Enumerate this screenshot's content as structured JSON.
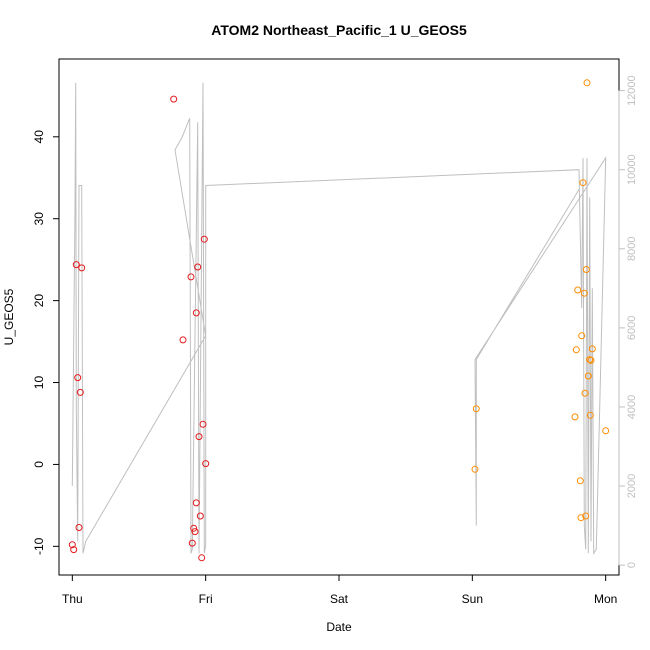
{
  "chart_data": {
    "type": "scatter",
    "title": "ATOM2 Northeast_Pacific_1 U_GEOS5",
    "xlabel": "Date",
    "ylabel": "U_GEOS5",
    "x_ticks": [
      "Thu",
      "Fri",
      "Sat",
      "Sun",
      "Mon"
    ],
    "xlim": [
      -0.1,
      4.1
    ],
    "ylim": [
      -13.5,
      49.5
    ],
    "y_ticks": [
      -10,
      0,
      10,
      20,
      30,
      40
    ],
    "y2lim": [
      -250,
      12800
    ],
    "y2_ticks": [
      0,
      2000,
      4000,
      6000,
      8000,
      10000,
      12000
    ],
    "grid": false,
    "colors": {
      "red": "#e41a1c",
      "orange": "#ff8c00",
      "line": "#bfbfbf",
      "right_axis": "#bfbfbf"
    },
    "series": [
      {
        "color_key": "red",
        "points": [
          [
            0.0,
            -9.8
          ],
          [
            0.01,
            -10.4
          ],
          [
            0.03,
            24.4
          ],
          [
            0.04,
            10.6
          ],
          [
            0.05,
            -7.7
          ],
          [
            0.06,
            8.8
          ],
          [
            0.07,
            24.0
          ],
          [
            0.76,
            44.6
          ],
          [
            0.83,
            15.2
          ],
          [
            0.89,
            22.9
          ],
          [
            0.9,
            -9.6
          ],
          [
            0.91,
            -7.8
          ],
          [
            0.92,
            -8.2
          ],
          [
            0.93,
            -4.7
          ],
          [
            0.93,
            18.5
          ],
          [
            0.94,
            24.1
          ],
          [
            0.95,
            3.4
          ],
          [
            0.96,
            -6.3
          ],
          [
            0.97,
            -11.4
          ],
          [
            0.98,
            4.9
          ],
          [
            0.99,
            27.5
          ],
          [
            1.0,
            0.1
          ]
        ]
      },
      {
        "color_key": "orange",
        "points": [
          [
            3.02,
            -0.6
          ],
          [
            3.03,
            6.8
          ],
          [
            3.77,
            5.8
          ],
          [
            3.78,
            14.0
          ],
          [
            3.79,
            21.3
          ],
          [
            3.81,
            -2.0
          ],
          [
            3.815,
            -6.5
          ],
          [
            3.82,
            15.7
          ],
          [
            3.83,
            34.4
          ],
          [
            3.84,
            20.9
          ],
          [
            3.845,
            8.7
          ],
          [
            3.85,
            -6.3
          ],
          [
            3.855,
            23.8
          ],
          [
            3.87,
            10.8
          ],
          [
            3.88,
            12.8
          ],
          [
            3.885,
            6.0
          ],
          [
            3.89,
            12.7
          ],
          [
            3.9,
            14.1
          ],
          [
            4.0,
            4.1
          ],
          [
            3.86,
            46.6
          ]
        ]
      }
    ],
    "altitude_line": [
      [
        0.0,
        2000
      ],
      [
        0.02,
        9000
      ],
      [
        0.025,
        12200
      ],
      [
        0.03,
        4000
      ],
      [
        0.04,
        600
      ],
      [
        0.05,
        9600
      ],
      [
        0.07,
        9600
      ],
      [
        0.08,
        300
      ],
      [
        0.1,
        600
      ],
      [
        1.0,
        5800
      ],
      [
        0.77,
        10500
      ],
      [
        0.82,
        10800
      ],
      [
        0.88,
        11300
      ],
      [
        0.89,
        300
      ],
      [
        0.9,
        400
      ],
      [
        0.94,
        11200
      ],
      [
        0.95,
        300
      ],
      [
        0.98,
        12200
      ],
      [
        0.99,
        300
      ],
      [
        1.0,
        500
      ],
      [
        1.0,
        9600
      ],
      [
        3.8,
        10000
      ],
      [
        3.82,
        6500
      ],
      [
        3.83,
        10300
      ],
      [
        3.84,
        1000
      ],
      [
        3.85,
        400
      ],
      [
        3.86,
        10300
      ],
      [
        3.87,
        300
      ],
      [
        3.88,
        9300
      ],
      [
        3.89,
        600
      ],
      [
        3.9,
        7000
      ],
      [
        3.91,
        300
      ],
      [
        3.93,
        400
      ],
      [
        4.0,
        10300
      ],
      [
        3.02,
        5200
      ],
      [
        3.03,
        1000
      ],
      [
        3.03,
        5200
      ],
      [
        3.8,
        9500
      ]
    ]
  }
}
